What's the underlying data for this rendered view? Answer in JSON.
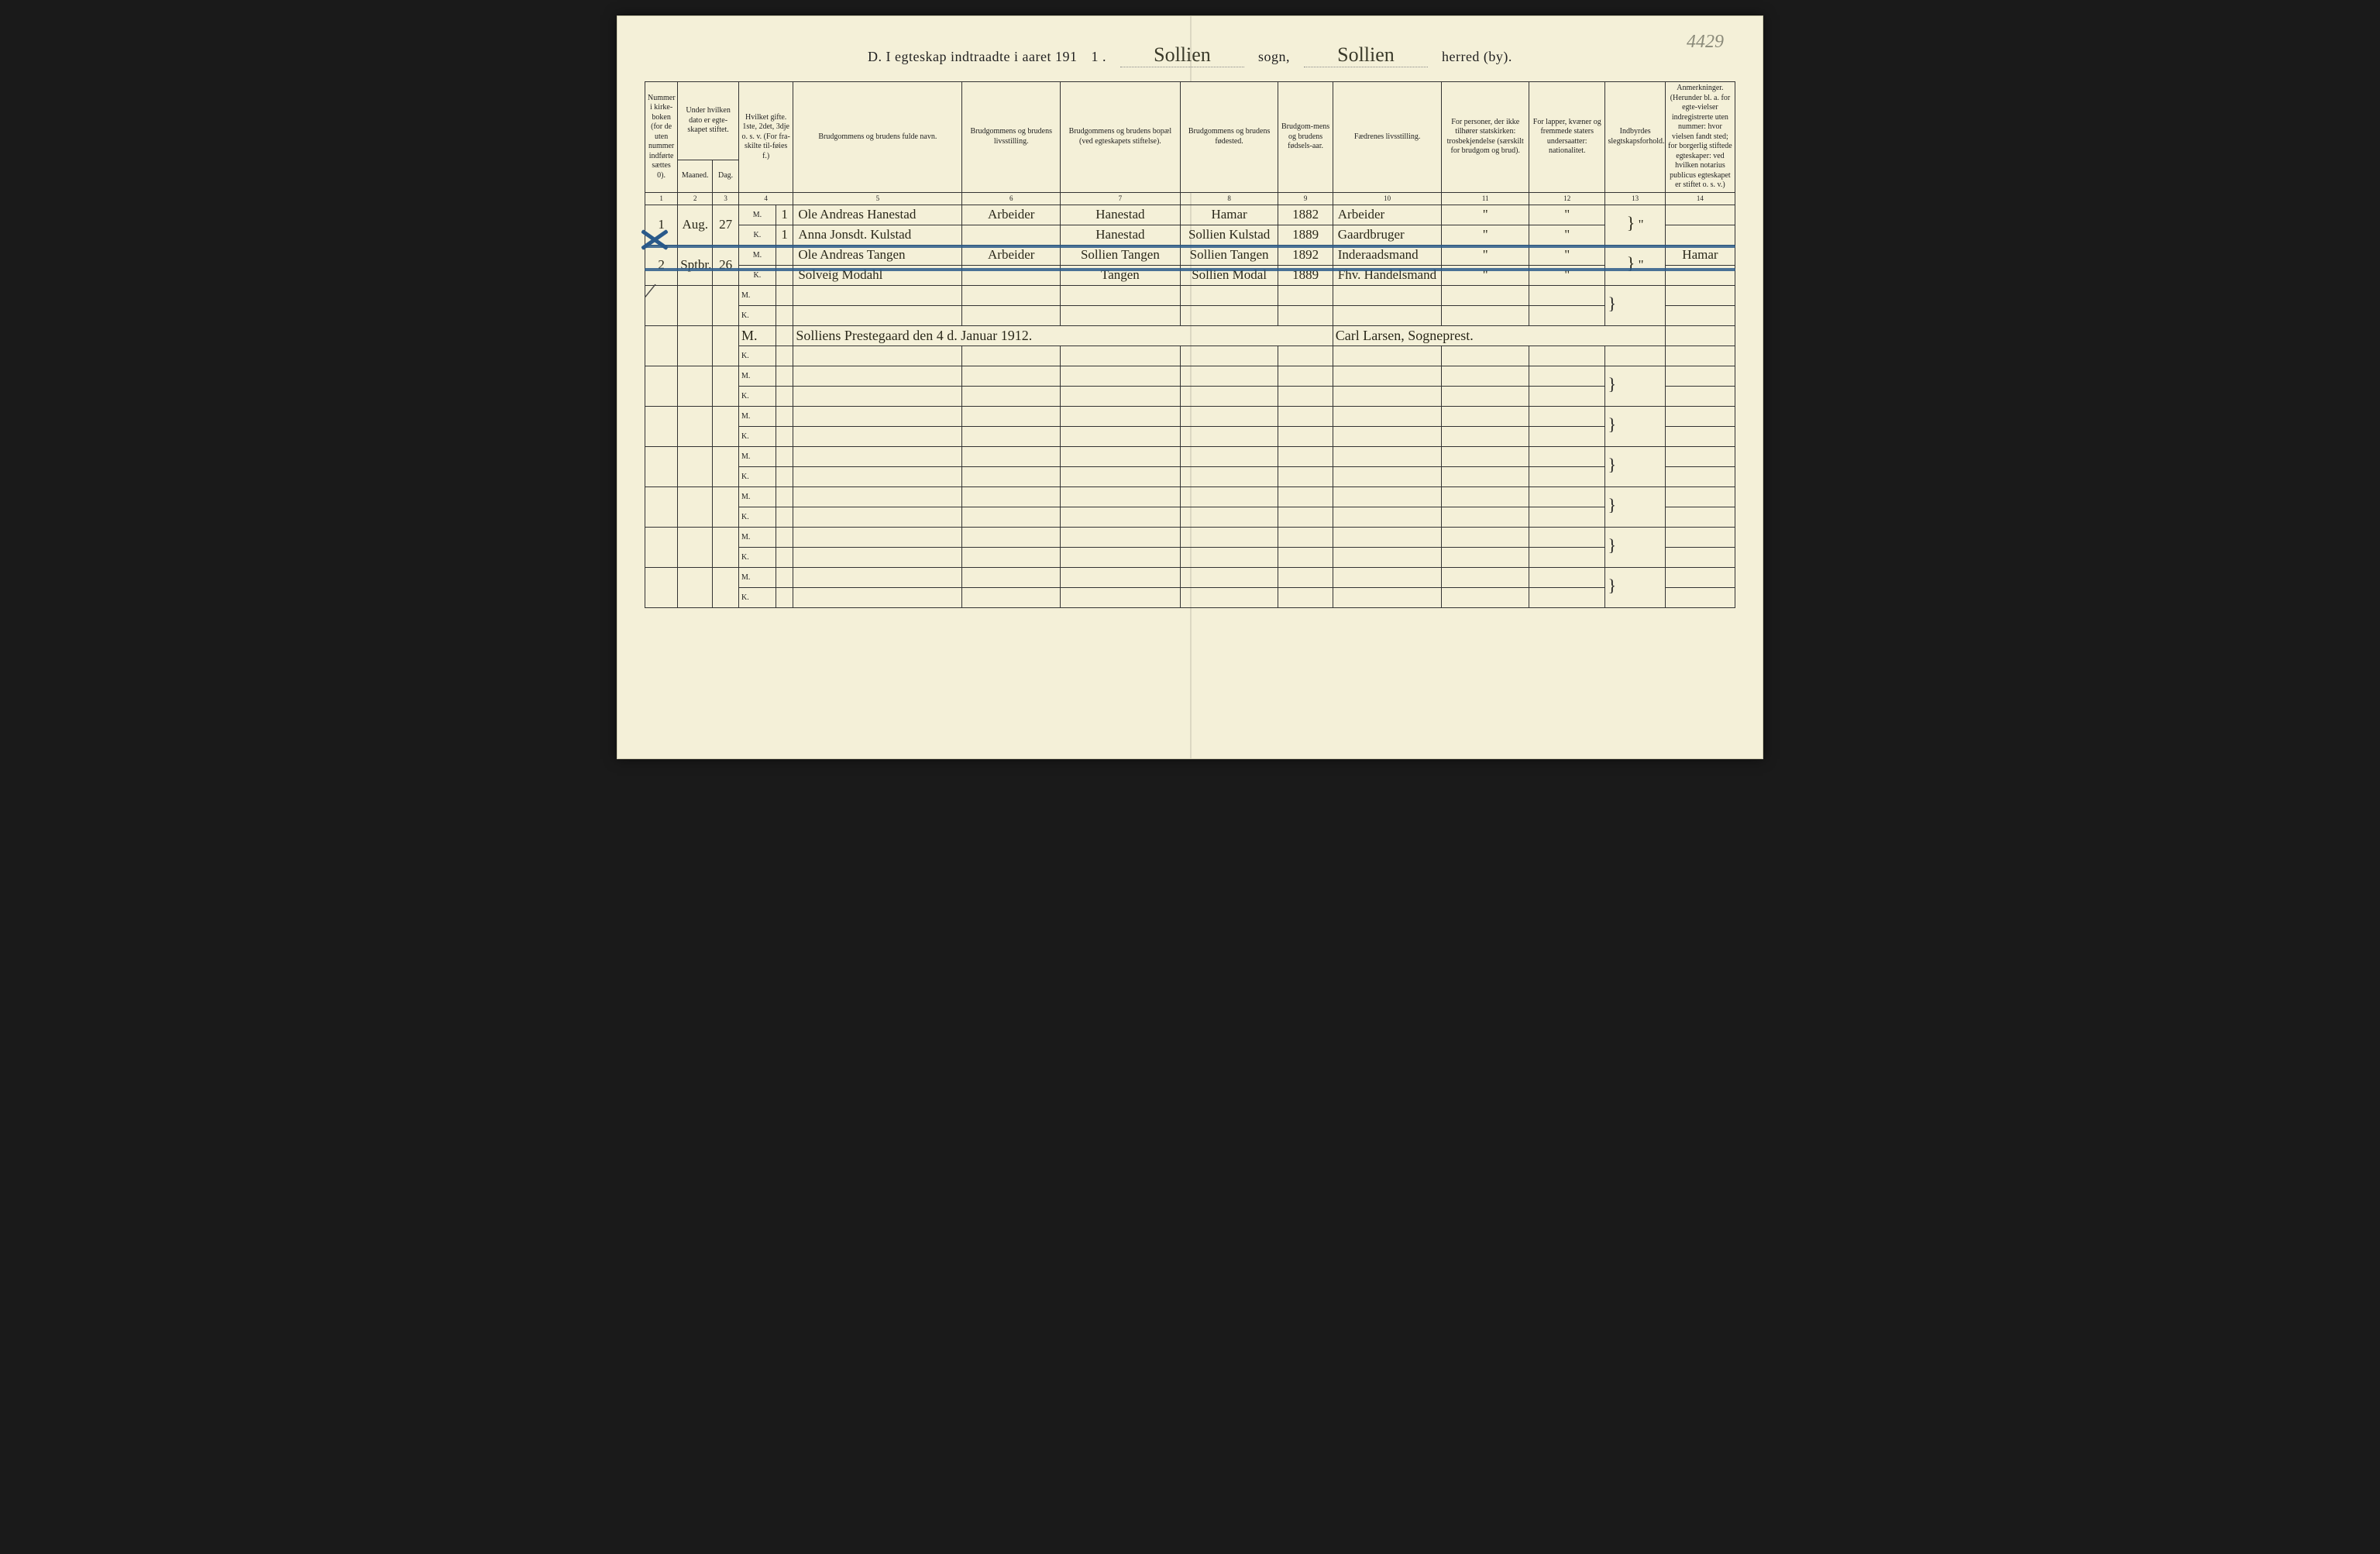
{
  "pencil_page_no": "4429",
  "title": {
    "prefix": "D.  I egteskap indtraadte i aaret 191",
    "year_suffix": "1 .",
    "sogn_value": "Sollien",
    "sogn_label": "sogn,",
    "herred_value": "Sollien",
    "herred_label": "herred (by)."
  },
  "headers": {
    "c1": "Nummer i kirke-boken (for de uten nummer indførte sættes 0).",
    "c2a": "Under hvilken dato er egte-skapet stiftet.",
    "c2_m": "Maaned.",
    "c2_d": "Dag.",
    "c3": "Hvilket gifte. 1ste, 2det, 3dje o. s. v. (For fra-skilte til-føies f.)",
    "c4": "Brudgommens og brudens fulde navn.",
    "c5": "Brudgommens og brudens livsstilling.",
    "c6": "Brudgommens og brudens bopæl (ved egteskapets stiftelse).",
    "c7": "Brudgommens og brudens fødested.",
    "c8": "Brudgom-mens og brudens fødsels-aar.",
    "c9": "Fædrenes livsstilling.",
    "c10": "For personer, der ikke tilhører statskirken: trosbekjendelse (særskilt for brudgom og brud).",
    "c11": "For lapper, kvæner og fremmede staters undersaatter: nationalitet.",
    "c12": "Indbyrdes slegtskapsforhold.",
    "c13": "Anmerkninger. (Herunder bl. a. for egte-vielser indregistrerte uten nummer: hvor vielsen fandt sted; for borgerlig stiftede egteskaper: ved hvilken notarius publicus egteskapet er stiftet o. s. v.)"
  },
  "colnums": [
    "1",
    "2",
    "3",
    "4",
    "5",
    "6",
    "7",
    "8",
    "9",
    "10",
    "11",
    "12",
    "13",
    "14"
  ],
  "mk": {
    "M": "M.",
    "K": "K."
  },
  "rows": [
    {
      "no": "1",
      "maaned": "Aug.",
      "dag": "27",
      "M": {
        "gifte": "1",
        "navn": "Ole Andreas Hanestad",
        "stilling": "Arbeider",
        "bopael": "Hanestad",
        "fodested": "Hamar",
        "aar": "1882",
        "faedre": "Arbeider",
        "c10": "\"",
        "c11": "\"",
        "c12": "\"",
        "anm": ""
      },
      "K": {
        "gifte": "1",
        "navn": "Anna Jonsdt. Kulstad",
        "stilling": "",
        "bopael": "Hanestad",
        "fodested": "Sollien Kulstad",
        "aar": "1889",
        "faedre": "Gaardbruger",
        "c10": "\"",
        "c11": "\"",
        "c12": "\"",
        "anm": ""
      }
    },
    {
      "no": "2",
      "maaned": "Sptbr.",
      "dag": "26",
      "struck": true,
      "M": {
        "gifte": "",
        "navn": "Ole Andreas Tangen",
        "stilling": "Arbeider",
        "bopael": "Sollien Tangen",
        "fodested": "Sollien Tangen",
        "aar": "1892",
        "faedre": "Inderaadsmand",
        "c10": "\"",
        "c11": "\"",
        "c12": "",
        "anm": "Hamar"
      },
      "K": {
        "gifte": "",
        "navn": "Solveig Modahl",
        "stilling": "",
        "bopael": "Tangen",
        "fodested": "Sollien Modal",
        "aar": "1889",
        "faedre": "Fhv. Handelsmand",
        "c10": "\"",
        "c11": "\"",
        "c12": "\"",
        "anm": ""
      }
    }
  ],
  "signature": {
    "place_date": "Solliens Prestegaard den 4 d. Januar 1912.",
    "signer": "Carl Larsen, Sogneprest."
  },
  "col_widths_pct": [
    3.0,
    3.2,
    2.4,
    3.4,
    1.6,
    15.5,
    9.0,
    11.0,
    9.0,
    5.0,
    10.0,
    8.0,
    7.0,
    5.5,
    6.4
  ],
  "colors": {
    "paper": "#f4f0d8",
    "ink": "#2a281a",
    "rule": "#333333",
    "strike": "#2a5a8a"
  }
}
